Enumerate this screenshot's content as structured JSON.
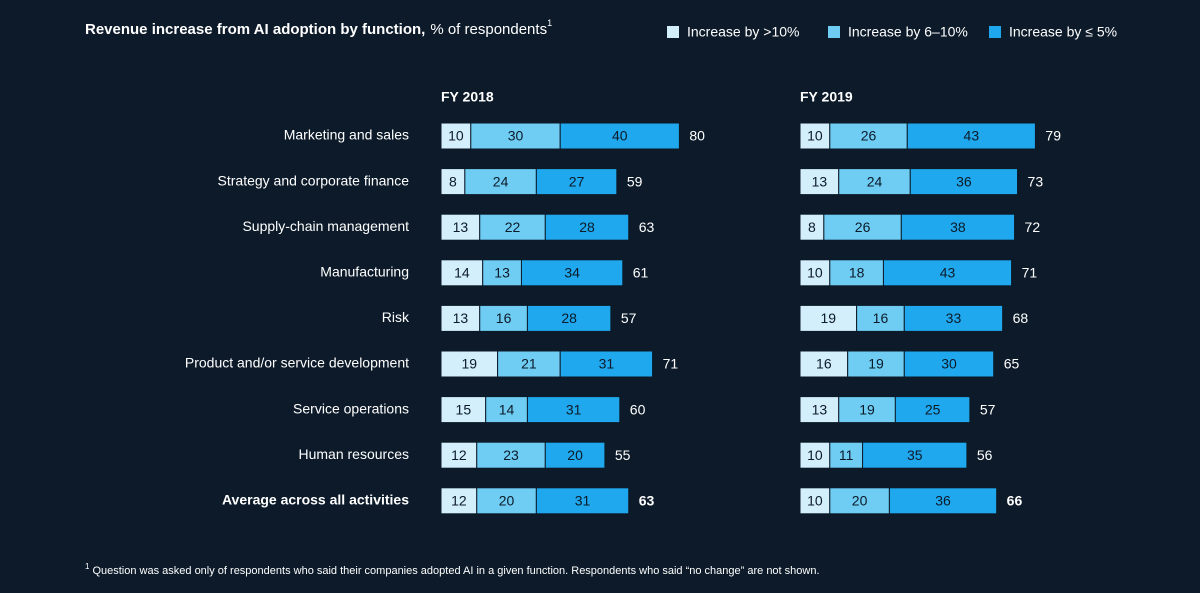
{
  "header": {
    "title": "Revenue increase from AI adoption by function,",
    "subtitle": "% of respondents",
    "note_marker": "1"
  },
  "footnote": {
    "marker": "1",
    "text": "Question was asked only of respondents who said their companies adopted AI in a given function. Respondents who said “no change” are not shown."
  },
  "chart_data": [
    {
      "type": "bar",
      "orientation": "horizontal",
      "stacked": true,
      "title": "FY 2018",
      "categories": [
        "Marketing and sales",
        "Strategy and corporate finance",
        "Supply-chain management",
        "Manufacturing",
        "Risk",
        "Product and/or service development",
        "Service operations",
        "Human resources",
        "Average across all activities"
      ],
      "series": [
        {
          "name": "Increase by >10%",
          "color": "#d3effc",
          "values": [
            10,
            8,
            13,
            14,
            13,
            19,
            15,
            12,
            12
          ]
        },
        {
          "name": "Increase by 6–10%",
          "color": "#6fcdf4",
          "values": [
            30,
            24,
            22,
            13,
            16,
            21,
            14,
            23,
            20
          ]
        },
        {
          "name": "Increase by ≤ 5%",
          "color": "#1fa8ed",
          "values": [
            40,
            27,
            28,
            34,
            28,
            31,
            31,
            20,
            31
          ]
        }
      ],
      "totals": [
        80,
        59,
        63,
        61,
        57,
        71,
        60,
        55,
        63
      ]
    },
    {
      "type": "bar",
      "orientation": "horizontal",
      "stacked": true,
      "title": "FY 2019",
      "series": [
        {
          "color": "#d3effc",
          "values": [
            10,
            13,
            8,
            10,
            19,
            16,
            13,
            10,
            10
          ]
        },
        {
          "color": "#6fcdf4",
          "values": [
            26,
            24,
            26,
            18,
            16,
            19,
            19,
            11,
            20
          ]
        },
        {
          "color": "#1fa8ed",
          "values": [
            43,
            36,
            38,
            43,
            33,
            30,
            25,
            35,
            36
          ]
        }
      ],
      "totals": [
        79,
        73,
        72,
        71,
        68,
        65,
        57,
        56,
        66
      ]
    }
  ]
}
